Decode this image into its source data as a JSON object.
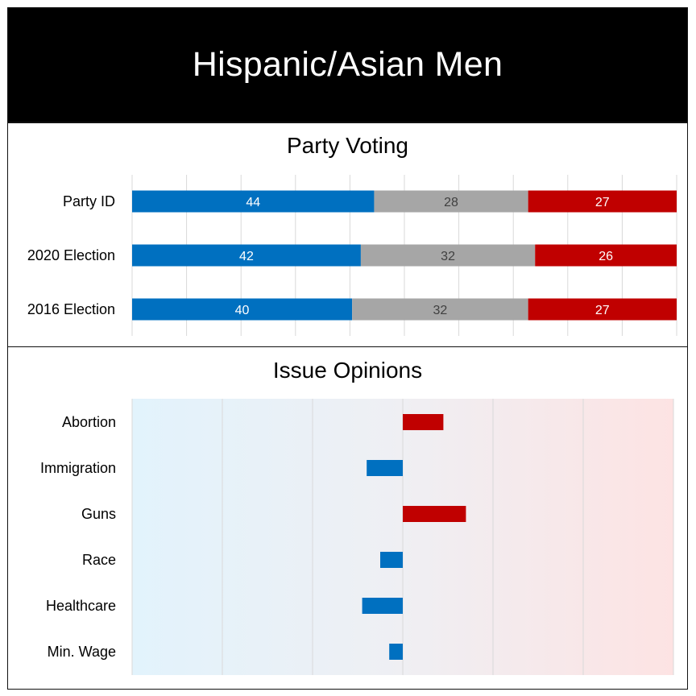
{
  "header": {
    "title": "Hispanic/Asian Men"
  },
  "party_section": {
    "title": "Party Voting"
  },
  "issue_section": {
    "title": "Issue Opinions"
  },
  "colors": {
    "democrat": "#0070c0",
    "independent": "#a6a6a6",
    "republican": "#c00000",
    "grid": "#d9d9d9"
  },
  "chart_data": [
    {
      "type": "bar",
      "orientation": "horizontal",
      "stacked": true,
      "title": "Party Voting",
      "categories": [
        "Party ID",
        "2020 Election",
        "2016 Election"
      ],
      "series": [
        {
          "values": [
            44,
            42,
            40
          ],
          "color": "#0070c0",
          "label_color": "#ffffff"
        },
        {
          "values": [
            28,
            32,
            32
          ],
          "color": "#a6a6a6",
          "label_color": "#404040"
        },
        {
          "values": [
            27,
            26,
            27
          ],
          "color": "#c00000",
          "label_color": "#ffffff"
        }
      ],
      "grid": true,
      "data_labels": true
    },
    {
      "type": "bar",
      "orientation": "horizontal",
      "diverging": true,
      "title": "Issue Opinions",
      "categories": [
        "Abortion",
        "Immigration",
        "Guns",
        "Race",
        "Healthcare",
        "Min. Wage"
      ],
      "values": [
        0.45,
        -0.4,
        0.7,
        -0.25,
        -0.45,
        -0.15
      ],
      "xlim": [
        -3,
        3
      ],
      "grid": true,
      "background": "gradient blue-to-red",
      "positive_color": "#c00000",
      "negative_color": "#0070c0"
    }
  ]
}
